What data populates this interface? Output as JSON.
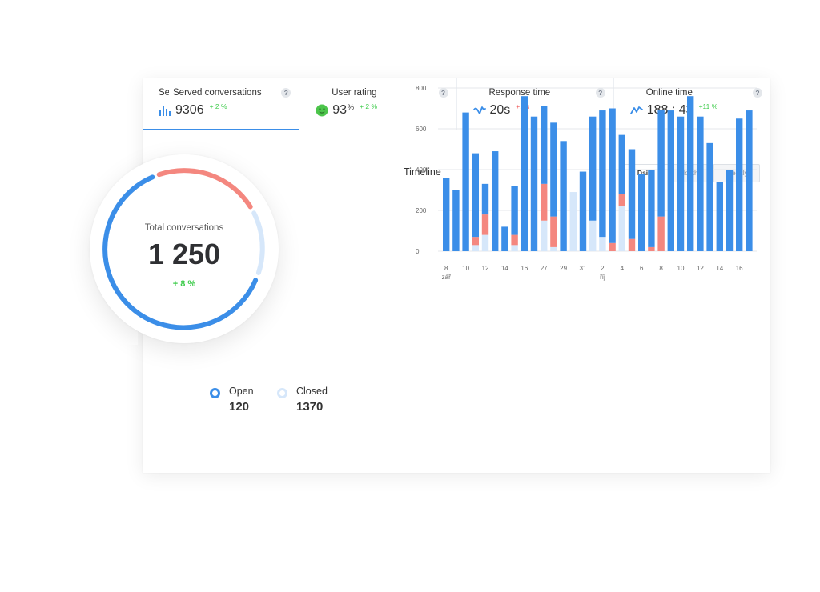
{
  "stats": [
    {
      "label": "Served conversations",
      "label_clipped": "Ser",
      "value": "9306",
      "value_suffix": "",
      "delta": "+ 2 %",
      "delta_dir": "up",
      "icon": "bar-chart-icon",
      "help": "?"
    },
    {
      "label": "User rating",
      "value": "93",
      "value_suffix": "%",
      "delta": "+ 2 %",
      "delta_dir": "up",
      "icon": "smiley-icon",
      "help": "?"
    },
    {
      "label": "Response time",
      "value": "20s",
      "value_suffix": "",
      "delta": "+1 s",
      "delta_dir": "down",
      "icon": "response-wave-icon",
      "help": "?"
    },
    {
      "label": "Online time",
      "value": "188 : 43",
      "value_suffix": "",
      "delta": "+11 %",
      "delta_dir": "up",
      "icon": "pulse-icon",
      "help": "?"
    }
  ],
  "colors": {
    "accent": "#3b8ee8",
    "positive": "#3fcc4c",
    "negative": "#ef5b5b",
    "closed": "#d6e7fa",
    "missed": "#f4877f"
  },
  "total": {
    "label": "Total conversations",
    "value": "1 250",
    "delta": "+ 8 %"
  },
  "legend": {
    "open_label": "Open",
    "open_value": "120",
    "closed_label": "Closed",
    "closed_value": "1370"
  },
  "timeline": {
    "title": "Timeline",
    "periods": [
      "Daily",
      "Monthly",
      "Weekly"
    ],
    "active_period": "Daily"
  },
  "chart_data": {
    "type": "bar",
    "stacked": true,
    "ylim": [
      0,
      800
    ],
    "yticks": [
      0,
      200,
      400,
      600,
      800
    ],
    "grid": true,
    "x_tick_labels": [
      {
        "index": 0,
        "label": "8",
        "sub": "zář"
      },
      {
        "index": 2,
        "label": "10"
      },
      {
        "index": 4,
        "label": "12"
      },
      {
        "index": 6,
        "label": "14"
      },
      {
        "index": 8,
        "label": "16"
      },
      {
        "index": 10,
        "label": "27"
      },
      {
        "index": 12,
        "label": "29"
      },
      {
        "index": 14,
        "label": "31"
      },
      {
        "index": 16,
        "label": "2",
        "sub": "říj"
      },
      {
        "index": 18,
        "label": "4"
      },
      {
        "index": 20,
        "label": "6"
      },
      {
        "index": 22,
        "label": "8"
      },
      {
        "index": 24,
        "label": "10"
      },
      {
        "index": 26,
        "label": "12"
      },
      {
        "index": 28,
        "label": "14"
      },
      {
        "index": 30,
        "label": "16"
      }
    ],
    "series": [
      {
        "color": "#d6e7fa",
        "values": [
          0,
          0,
          0,
          30,
          80,
          0,
          0,
          30,
          0,
          0,
          150,
          20,
          0,
          290,
          0,
          150,
          70,
          0,
          220,
          0,
          0,
          0,
          0,
          0,
          0,
          0,
          0,
          0,
          0,
          0,
          0,
          0,
          0
        ]
      },
      {
        "color": "#f4877f",
        "values": [
          0,
          0,
          0,
          40,
          100,
          0,
          0,
          50,
          0,
          0,
          180,
          150,
          0,
          0,
          0,
          0,
          0,
          40,
          60,
          60,
          0,
          20,
          170,
          0,
          0,
          0,
          0,
          0,
          0,
          0,
          0,
          0,
          0
        ]
      },
      {
        "color": "#3b8ee8",
        "values": [
          360,
          300,
          680,
          410,
          150,
          490,
          120,
          240,
          760,
          660,
          380,
          460,
          540,
          0,
          390,
          510,
          620,
          660,
          290,
          440,
          380,
          380,
          520,
          690,
          660,
          760,
          660,
          530,
          340,
          400,
          650,
          690,
          0
        ]
      }
    ]
  }
}
